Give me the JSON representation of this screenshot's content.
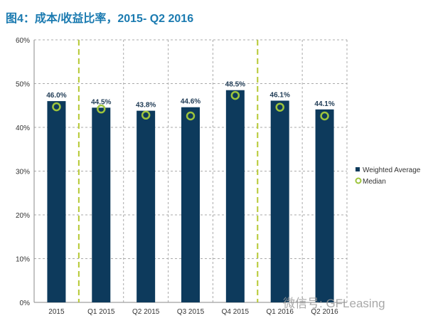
{
  "title": "图4：成本/收益比率，2015- Q2 2016",
  "watermark": "微信号: GFLeasing",
  "chart_data": {
    "type": "bar",
    "title": "图4：成本/收益比率，2015- Q2 2016",
    "categories": [
      "2015",
      "Q1  2015",
      "Q2 2015",
      "Q3 2015",
      "Q4 2015",
      "Q1 2016",
      "Q2 2016"
    ],
    "series": [
      {
        "name": "Weighted Average",
        "type": "bar",
        "color": "#0d3a5c",
        "values": [
          46.0,
          44.5,
          43.8,
          44.6,
          48.5,
          46.1,
          44.1
        ],
        "labels": [
          "46.0%",
          "44.5%",
          "43.8%",
          "44.6%",
          "48.5%",
          "46.1%",
          "44.1%"
        ]
      },
      {
        "name": "Median",
        "type": "marker",
        "color": "#9dc43c",
        "values": [
          44.7,
          44.2,
          42.8,
          42.6,
          47.3,
          44.6,
          42.6
        ]
      }
    ],
    "yticks": [
      "0%",
      "10%",
      "20%",
      "30%",
      "40%",
      "50%",
      "60%"
    ],
    "ylim": [
      0,
      60
    ],
    "grid": true,
    "separators_after": [
      "2015",
      "Q4 2015"
    ],
    "legend": "right"
  }
}
